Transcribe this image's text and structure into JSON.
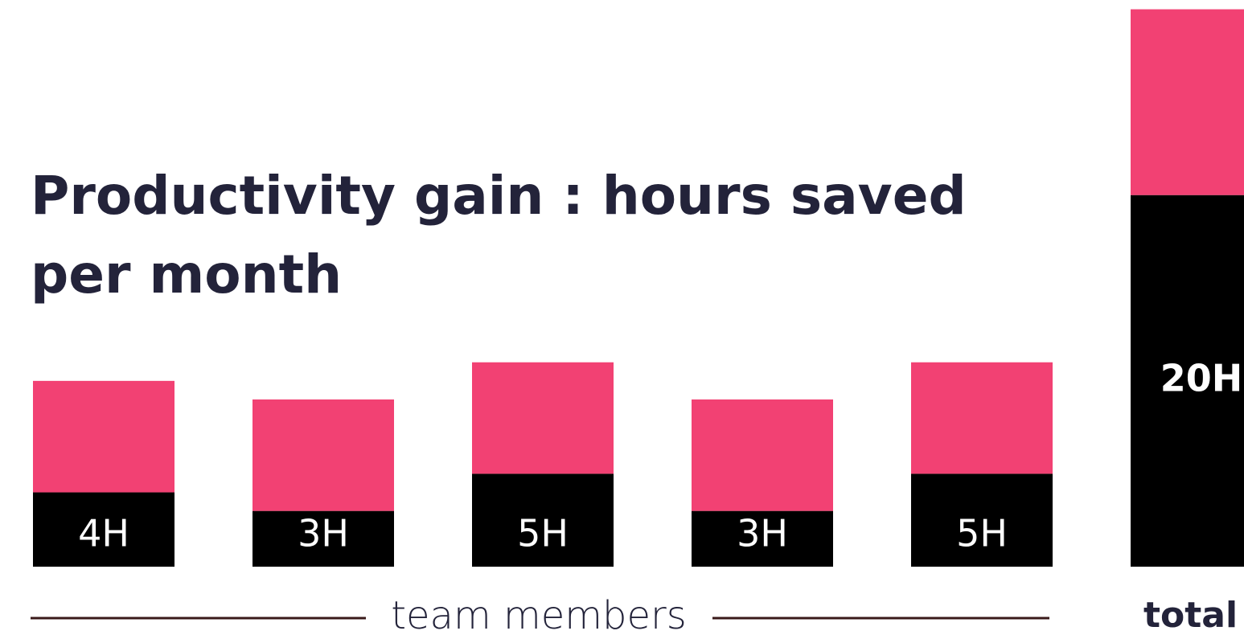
{
  "chart_data": {
    "type": "bar",
    "title": [
      "Productivity gain : hours saved",
      "per month"
    ],
    "x_label": "team members",
    "categories": [
      null,
      null,
      null,
      null,
      null,
      "total"
    ],
    "series": [
      {
        "color": "#000000",
        "values": [
          4,
          3,
          5,
          3,
          5,
          20
        ],
        "value_labels": [
          "4H",
          "3H",
          "5H",
          "3H",
          "5H",
          "20H"
        ]
      },
      {
        "color": "#f24173",
        "values": [
          6,
          6,
          6,
          6,
          6,
          10
        ]
      }
    ],
    "ylim": [
      0,
      30.5
    ]
  }
}
